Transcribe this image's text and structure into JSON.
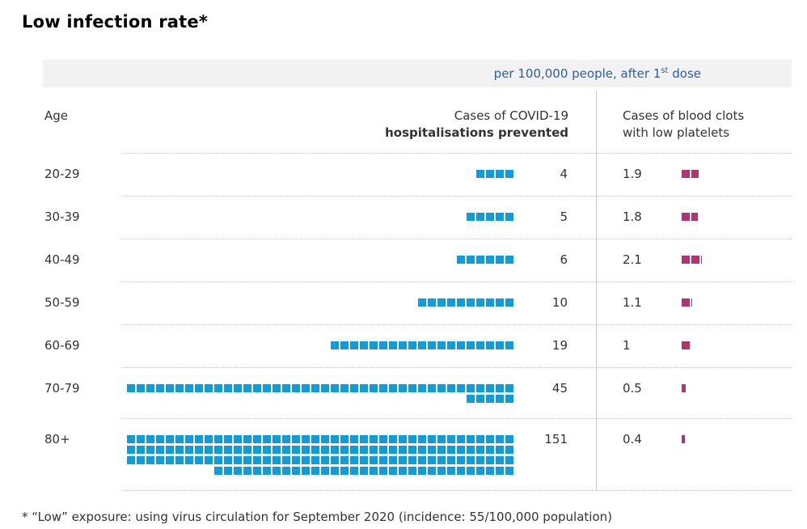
{
  "title": "Low infection rate*",
  "banner": {
    "prefix": "per 100,000 people, after 1",
    "superscript": "st",
    "suffix": " dose"
  },
  "columns": {
    "age_label": "Age",
    "hospitalisations_line1": "Cases of COVID-19",
    "hospitalisations_line2": "hospitalisations prevented",
    "clots_line1": "Cases of blood clots",
    "clots_line2": "with low platelets"
  },
  "rows": [
    {
      "age": "20-29",
      "hosp_label": "4",
      "clots_label": "1.9"
    },
    {
      "age": "30-39",
      "hosp_label": "5",
      "clots_label": "1.8"
    },
    {
      "age": "40-49",
      "hosp_label": "6",
      "clots_label": "2.1"
    },
    {
      "age": "50-59",
      "hosp_label": "10",
      "clots_label": "1.1"
    },
    {
      "age": "60-69",
      "hosp_label": "19",
      "clots_label": "1"
    },
    {
      "age": "70-79",
      "hosp_label": "45",
      "clots_label": "0.5"
    },
    {
      "age": "80+",
      "hosp_label": "151",
      "clots_label": "0.4"
    }
  ],
  "chart_data": {
    "type": "pictogram",
    "title": "Low infection rate*",
    "unit": "per 100,000 people, after 1st dose",
    "categories": [
      "20-29",
      "30-39",
      "40-49",
      "50-59",
      "60-69",
      "70-79",
      "80+"
    ],
    "series": [
      {
        "name": "Cases of COVID-19 hospitalisations prevented",
        "values": [
          4,
          5,
          6,
          10,
          19,
          45,
          151
        ]
      },
      {
        "name": "Cases of blood clots with low platelets",
        "values": [
          1.9,
          1.8,
          2.1,
          1.1,
          1,
          0.5,
          0.4
        ]
      }
    ],
    "layout_hints": {
      "square_unit": 1,
      "squares_per_line": 40,
      "squares_right_aligned": true,
      "fractional_values_as_partial_square_width": true
    }
  },
  "footnote": "* “Low” exposure: using virus circulation for September 2020 (incidence: 55/100,000 population)",
  "colors": {
    "hospitalisation_square": "#129bd9",
    "clot_square": "#b23370",
    "banner_bg": "#f2f2f2",
    "banner_text": "#2d5da9",
    "divider": "#cccccc",
    "text": "#333333"
  }
}
